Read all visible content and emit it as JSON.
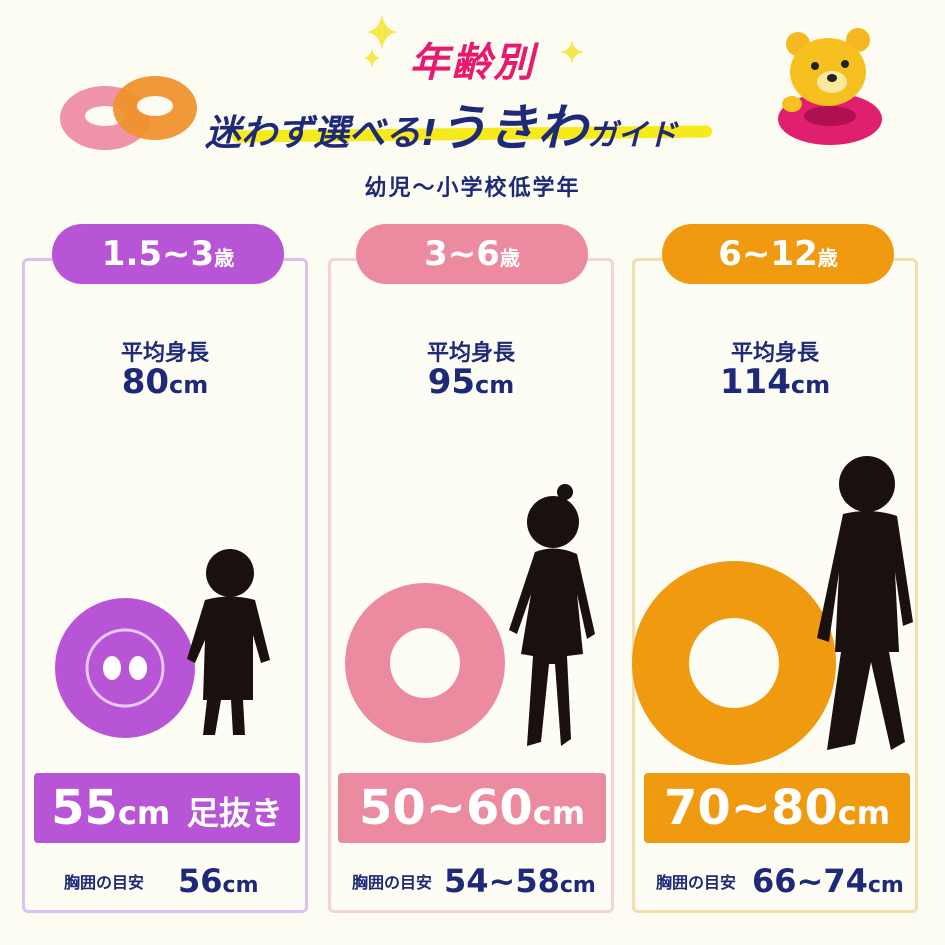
{
  "header": {
    "title_top": "年齢別",
    "title_main_a": "迷わず選べる!",
    "title_main_b": "うきわ",
    "title_main_c": "ガイド",
    "subtitle": "幼児～小学校低学年"
  },
  "colors": {
    "purple": "#b855d6",
    "pink": "#ec8aa0",
    "orange": "#f09a10",
    "navy": "#1e2a78",
    "magenta": "#e8196e",
    "yellow": "#f7ea1a"
  },
  "cards": [
    {
      "age": "1.5~3",
      "age_unit": "歳",
      "height_label": "平均身長",
      "height_value": "80",
      "height_unit": "cm",
      "size_value": "55",
      "size_unit": "cm",
      "size_note": "足抜き",
      "chest_label": "胸囲の目安",
      "chest_value": "56",
      "chest_unit": "cm"
    },
    {
      "age": "3~6",
      "age_unit": "歳",
      "height_label": "平均身長",
      "height_value": "95",
      "height_unit": "cm",
      "size_value": "50~60",
      "size_unit": "cm",
      "size_note": "",
      "chest_label": "胸囲の目安",
      "chest_value": "54~58",
      "chest_unit": "cm"
    },
    {
      "age": "6~12",
      "age_unit": "歳",
      "height_label": "平均身長",
      "height_value": "114",
      "height_unit": "cm",
      "size_value": "70~80",
      "size_unit": "cm",
      "size_note": "",
      "chest_label": "胸囲の目安",
      "chest_value": "66~74",
      "chest_unit": "cm"
    }
  ]
}
